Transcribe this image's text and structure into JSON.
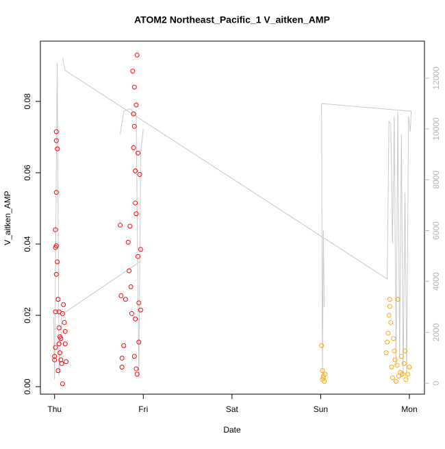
{
  "chart_data": {
    "type": "scatter",
    "title": "ATOM2 Northeast_Pacific_1 V_aitken_AMP",
    "x_label": "Date",
    "y_label": "V_aitken_AMP",
    "xlim": [
      -0.16,
      4.17
    ],
    "xticks": [
      {
        "value": 0,
        "label": "Thu"
      },
      {
        "value": 1,
        "label": "Fri"
      },
      {
        "value": 2,
        "label": "Sat"
      },
      {
        "value": 3,
        "label": "Sun"
      },
      {
        "value": 4,
        "label": "Mon"
      }
    ],
    "ylim": [
      -0.0021,
      0.0969
    ],
    "yticks": [
      {
        "value": 0,
        "label": "0.00"
      },
      {
        "value": 0.02,
        "label": "0.02"
      },
      {
        "value": 0.04,
        "label": "0.04"
      },
      {
        "value": 0.06,
        "label": "0.06"
      },
      {
        "value": 0.08,
        "label": "0.08"
      }
    ],
    "y2lim": [
      -431,
      13455
    ],
    "y2ticks": [
      0,
      2000,
      4000,
      6000,
      8000,
      10000,
      12000
    ],
    "y2_color": "#b4b4b4",
    "series": [
      {
        "type": "line",
        "axis": "y2",
        "color": "#c8c8c8",
        "x": [
          -0.01,
          0.0,
          0.03,
          0.05,
          0.08,
          0.97,
          null,
          0.74,
          0.78,
          0.85,
          0.92,
          0.95,
          0.97,
          1.0,
          null,
          0.09,
          0.12,
          3.75,
          3.77,
          3.79,
          3.81,
          3.83,
          3.85,
          3.87,
          3.89,
          3.91,
          3.93,
          3.95,
          3.97,
          3.99,
          4.01,
          4.02,
          3.01,
          3.02,
          3.03,
          3.04
        ],
        "values": [
          2600,
          150,
          12600,
          300,
          2700,
          4800,
          null,
          9800,
          10700,
          10800,
          10600,
          200,
          9000,
          10000,
          null,
          12800,
          12300,
          4100,
          10300,
          10200,
          5500,
          10500,
          700,
          10700,
          1000,
          9800,
          300,
          7500,
          300,
          10500,
          9900,
          10700,
          11000,
          300,
          6000,
          3000
        ]
      },
      {
        "type": "scatter",
        "color": "#ff0000",
        "x": [
          0.0,
          0.0,
          0.01,
          0.01,
          0.02,
          0.02,
          0.02,
          0.01,
          0.01,
          0.02,
          0.03,
          0.04,
          0.05,
          0.05,
          0.06,
          0.06,
          0.07,
          0.08,
          0.09,
          0.1,
          0.11,
          0.12,
          0.13,
          0.09,
          0.04,
          0.03,
          0.02,
          0.05,
          0.07,
          0.12,
          0.74,
          0.75,
          0.76,
          0.76,
          0.78,
          0.8,
          0.83,
          0.84,
          0.85,
          0.86,
          0.87,
          0.88,
          0.89,
          0.9,
          0.9,
          0.91,
          0.91,
          0.92,
          0.93,
          0.94,
          0.94,
          0.95,
          0.96,
          0.97,
          0.97,
          0.9,
          0.92,
          0.93,
          0.95,
          0.91,
          0.89,
          0.92
        ],
        "values": [
          0.0075,
          0.0085,
          0.011,
          0.021,
          0.0715,
          0.069,
          0.0545,
          0.044,
          0.039,
          0.0315,
          0.035,
          0.0245,
          0.021,
          0.0165,
          0.014,
          0.0095,
          0.0075,
          0.0065,
          0.0205,
          0.023,
          0.018,
          0.012,
          0.007,
          0.0008,
          0.0045,
          0.0667,
          0.0395,
          0.012,
          0.0135,
          0.0155,
          0.0453,
          0.0255,
          0.008,
          0.0055,
          0.0115,
          0.0245,
          0.0405,
          0.0325,
          0.045,
          0.028,
          0.0205,
          0.0885,
          0.0765,
          0.084,
          0.073,
          0.0605,
          0.0515,
          0.0485,
          0.093,
          0.0655,
          0.0365,
          0.0235,
          0.0595,
          0.0385,
          0.0215,
          0.0085,
          0.005,
          0.0035,
          0.0125,
          0.019,
          0.067,
          0.079
        ]
      },
      {
        "type": "scatter",
        "color": "#ffa500",
        "x": [
          3.01,
          3.02,
          3.03,
          3.04,
          3.02,
          3.05,
          3.03,
          3.74,
          3.75,
          3.76,
          3.77,
          3.78,
          3.79,
          3.8,
          3.81,
          3.83,
          3.84,
          3.85,
          3.86,
          3.87,
          3.88,
          3.9,
          3.91,
          3.92,
          3.94,
          3.96,
          3.98,
          4.0,
          3.78,
          3.82,
          3.95
        ],
        "values": [
          0.0115,
          0.0045,
          0.003,
          0.0015,
          0.002,
          0.0035,
          0.0025,
          0.0095,
          0.0125,
          0.015,
          0.02,
          0.0245,
          0.018,
          0.0055,
          0.0025,
          0.01,
          0.0075,
          0.0015,
          0.006,
          0.0245,
          0.003,
          0.004,
          0.0085,
          0.0035,
          0.0065,
          0.002,
          0.0035,
          0.0055,
          0.0225,
          0.0135,
          0.01
        ]
      }
    ]
  }
}
